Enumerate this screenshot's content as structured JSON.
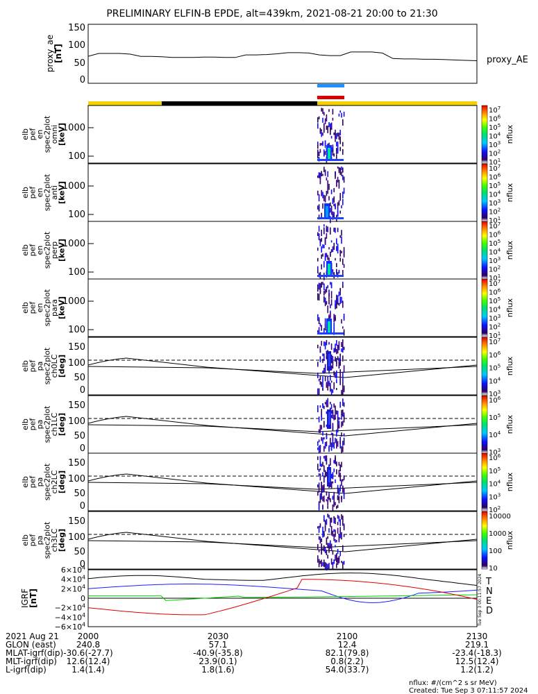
{
  "title": "PRELIMINARY ELFIN-B EPDE, alt=439km, 2021-08-21 20:00 to 21:30",
  "ae_panel": {
    "ylabel_lines": [
      "proxy_ae",
      "[nT]"
    ],
    "yticks": [
      "150",
      "100",
      "50",
      "0"
    ],
    "ylim": [
      0,
      150
    ],
    "series_label": "proxy_AE",
    "values": [
      68,
      76,
      76,
      76,
      74,
      68,
      68,
      67,
      65,
      65,
      65,
      66,
      66,
      65,
      65,
      72,
      72,
      73,
      75,
      78,
      78,
      77,
      72,
      70,
      70,
      80,
      80,
      80,
      77,
      62,
      61,
      61,
      60,
      60,
      59,
      58,
      57,
      56
    ]
  },
  "bars": {
    "sci_zone": {
      "color": "#1e90ff"
    },
    "fgm_zone": {
      "color": "#dd0000"
    },
    "sunlight_segments": [
      {
        "state": "sunlit",
        "color": "#f4d000"
      },
      {
        "state": "shadow",
        "color": "#000000"
      },
      {
        "state": "sunlit",
        "color": "#f4d000"
      }
    ]
  },
  "energy_panels": [
    {
      "ylabel_lines": [
        "elb",
        "pef",
        "en",
        "spec2plot",
        "omni",
        "[keV]"
      ],
      "yticks": [
        "1000",
        "100"
      ],
      "cb_ticks": [
        "10^7",
        "10^6",
        "10^5",
        "10^4",
        "10^3",
        "10^2",
        "10^1"
      ],
      "cb_label": "nflux"
    },
    {
      "ylabel_lines": [
        "elb",
        "pef",
        "en",
        "spec2plot",
        "anti",
        "[keV]"
      ],
      "yticks": [
        "1000",
        "100"
      ],
      "cb_ticks": [
        "10^7",
        "10^6",
        "10^5",
        "10^4",
        "10^3",
        "10^2",
        "10^1"
      ],
      "cb_label": "nflux"
    },
    {
      "ylabel_lines": [
        "elb",
        "pef",
        "en",
        "spec2plot",
        "perp",
        "[keV]"
      ],
      "yticks": [
        "1000",
        "100"
      ],
      "cb_ticks": [
        "10^7",
        "10^6",
        "10^5",
        "10^4",
        "10^3",
        "10^2",
        "10^1"
      ],
      "cb_label": "nflux"
    },
    {
      "ylabel_lines": [
        "elb",
        "pef",
        "en",
        "spec2plot",
        "para",
        "[keV]"
      ],
      "yticks": [
        "1000",
        "100"
      ],
      "cb_ticks": [
        "10^7",
        "10^6",
        "10^5",
        "10^4",
        "10^3",
        "10^2",
        "10^1"
      ],
      "cb_label": "nflux"
    }
  ],
  "pa_panels": [
    {
      "ylabel_lines": [
        "elb",
        "pef",
        "pa",
        "spec2plot",
        "ch0LC",
        "[deg]"
      ],
      "yticks": [
        "150",
        "100",
        "50",
        "0"
      ],
      "cb_ticks": [
        "10^7",
        "10^6",
        "10^5",
        "10^4",
        "10^3"
      ],
      "cb_label": "nflux"
    },
    {
      "ylabel_lines": [
        "elb",
        "pef",
        "pa",
        "spec2plot",
        "ch1LC",
        "[deg]"
      ],
      "yticks": [
        "150",
        "100",
        "50",
        "0"
      ],
      "cb_ticks": [
        "10^6",
        "10^5",
        "10^4",
        "10^3"
      ],
      "cb_label": "nflux"
    },
    {
      "ylabel_lines": [
        "elb",
        "pef",
        "pa",
        "spec2plot",
        "ch2LC",
        "[deg]"
      ],
      "yticks": [
        "150",
        "100",
        "50",
        "0"
      ],
      "cb_ticks": [
        "10^6",
        "10^5",
        "10^4",
        "10^3",
        "10^2"
      ],
      "cb_label": "nflux"
    },
    {
      "ylabel_lines": [
        "elb",
        "pef",
        "pa",
        "spec2plot",
        "ch3LC",
        "[deg]"
      ],
      "yticks": [
        "150",
        "100",
        "50",
        "0"
      ],
      "cb_ticks": [
        "10000",
        "1000",
        "100",
        "10"
      ],
      "cb_label": "nflux"
    }
  ],
  "b_panel": {
    "ylabel_lines": [
      "IGRF",
      "[nT]"
    ],
    "yticks": [
      "6×10^4",
      "4×10^4",
      "2×10^4",
      "0",
      "−2×10^4",
      "−4×10^4",
      "−6×10^4"
    ],
    "ylim": [
      -60000,
      60000
    ],
    "legend": [
      {
        "label": "T",
        "color": "#000000"
      },
      {
        "label": "N",
        "color": "#1a1aff"
      },
      {
        "label": "E",
        "color": "#00cc00"
      },
      {
        "label": "D",
        "color": "#dd0000"
      }
    ],
    "stamp": "Tue Sep  3 00:11:57 2024"
  },
  "xticks": [
    "2000",
    "2030",
    "2100",
    "2130"
  ],
  "orbit_table": {
    "rows": [
      {
        "label": "2021 Aug 21",
        "values": [
          "2000",
          "2030",
          "2100",
          "2130"
        ]
      },
      {
        "label": "GLON (east)",
        "values": [
          "240.8",
          "57.1",
          "12.4",
          "219.1"
        ]
      },
      {
        "label": "MLAT-igrf(dip)",
        "values": [
          "-30.6(-27.7)",
          "-40.9(-35.8)",
          "82.1(79.8)",
          "-23.4(-18.3)"
        ]
      },
      {
        "label": "MLT-igrf(dip)",
        "values": [
          "12.6(12.4)",
          "23.9(0.1)",
          "0.8(2.2)",
          "12.5(12.4)"
        ]
      },
      {
        "label": "L-igrf(dip)",
        "values": [
          "1.4(1.4)",
          "1.8(1.6)",
          "54.0(33.7)",
          "1.2(1.2)"
        ]
      }
    ]
  },
  "footer": {
    "units": "nflux: #/(cm^2 s sr MeV)",
    "created": "Created: Tue Sep  3 07:11:57 2024"
  }
}
